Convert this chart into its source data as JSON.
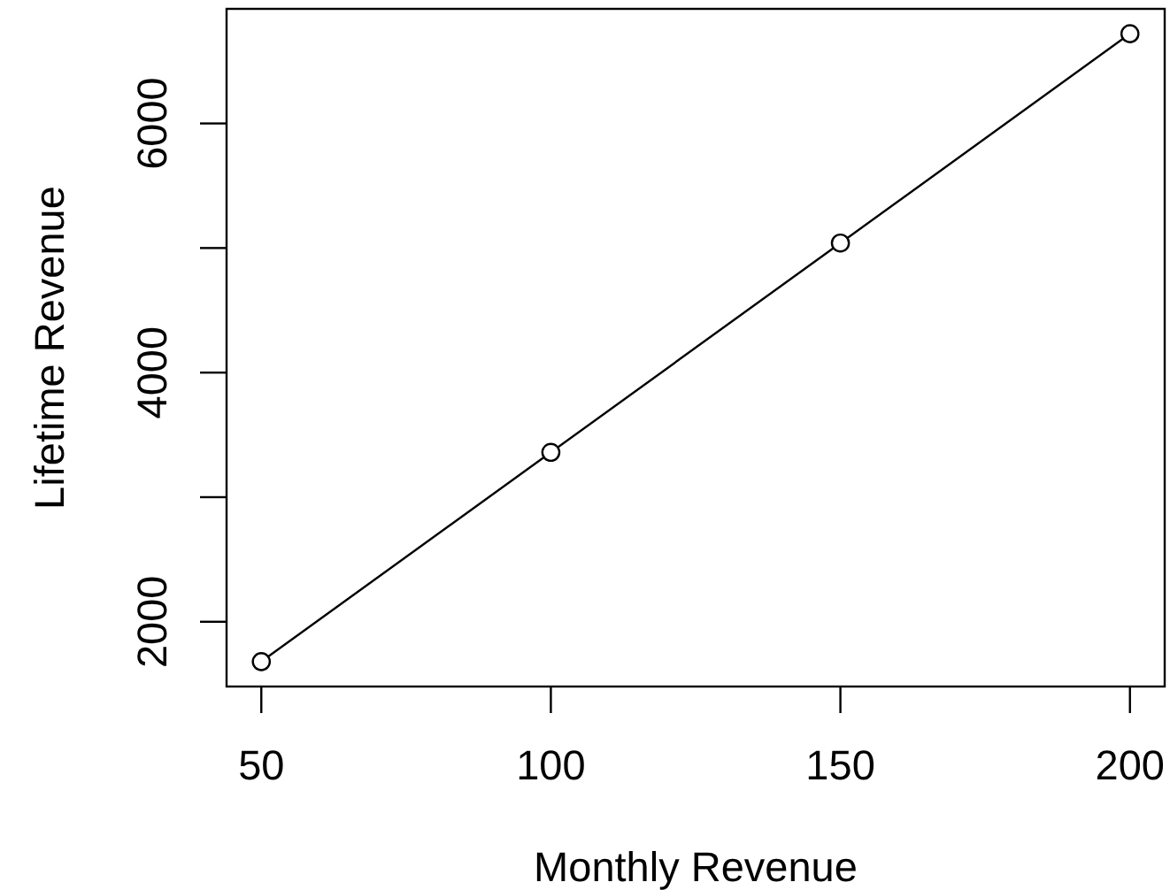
{
  "chart_data": {
    "type": "line",
    "xlabel": "Monthly Revenue",
    "ylabel": "Lifetime Revenue",
    "x": [
      50,
      100,
      150,
      200
    ],
    "series": [
      {
        "color": "#000000",
        "values": [
          1680,
          3360,
          5040,
          6720
        ]
      }
    ],
    "xlim": [
      44,
      206
    ],
    "ylim": [
      1480,
      6920
    ],
    "xticks": [
      50,
      100,
      150,
      200
    ],
    "yticks": [
      2000,
      {
        "value": 3000,
        "label": null
      },
      4000,
      {
        "value": 5000,
        "label": null
      },
      6000
    ],
    "marker": "circle"
  }
}
